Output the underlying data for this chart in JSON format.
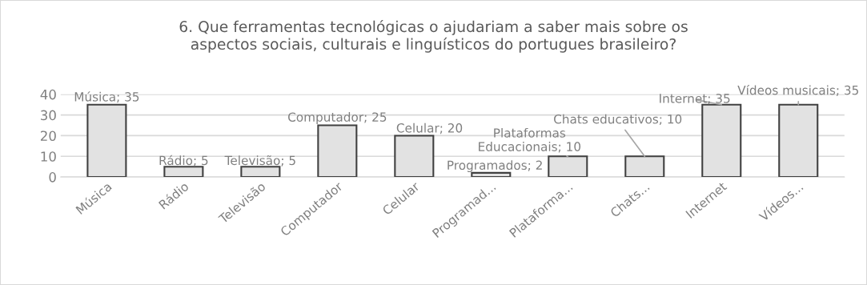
{
  "chart_data": {
    "type": "bar",
    "title": "6. Que ferramentas tecnológicas o ajudariam a saber mais sobre os\naspectos sociais, culturais e linguísticos do portugues brasileiro?",
    "categories": [
      "Música",
      "Rádio",
      "Televisão",
      "Computador",
      "Celular",
      "Programad...",
      "Plataforma...",
      "Chats...",
      "Internet",
      "Vídeos..."
    ],
    "values": [
      35,
      5,
      5,
      25,
      20,
      2,
      10,
      10,
      35,
      35
    ],
    "value_labels": [
      "Música; 35",
      "Rádio; 5",
      "Televisão; 5",
      "Computador; 25",
      "Celular; 20",
      "Programados; 2",
      "Plataformas\nEducacionais; 10",
      "Chats educativos; 10",
      "Internet; 35",
      "Vídeos musicais; 35"
    ],
    "color": "#e2e2e2",
    "ylim": [
      0,
      40
    ],
    "yticks": [
      0,
      10,
      20,
      30,
      40
    ],
    "grid": "y"
  }
}
